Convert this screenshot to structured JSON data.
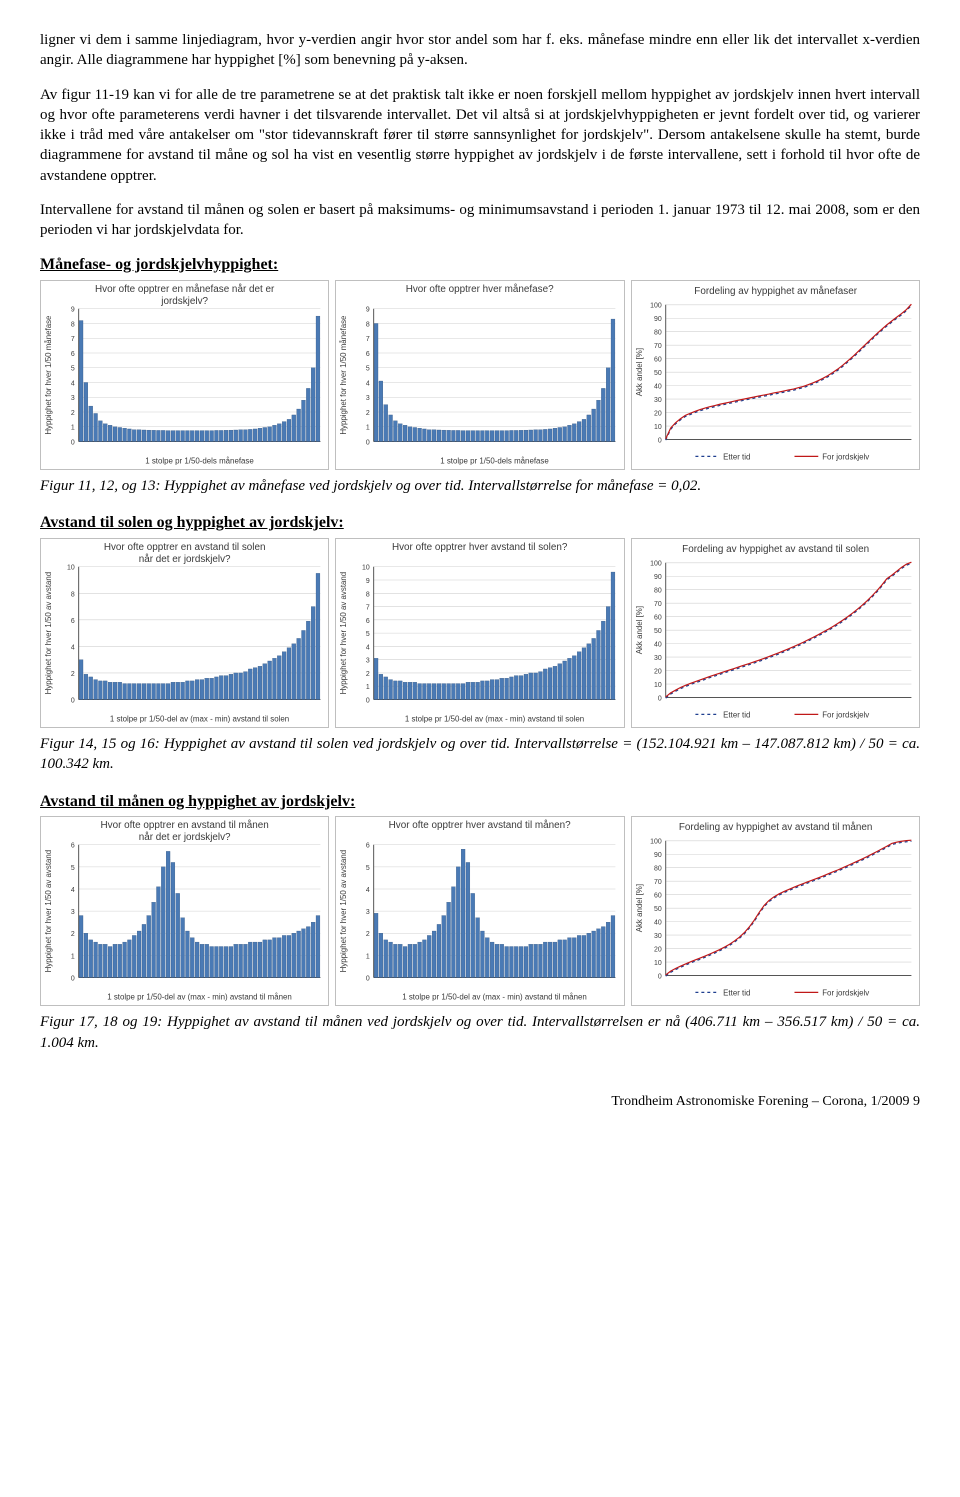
{
  "para1": "ligner vi dem i samme linjediagram, hvor y-verdien angir hvor stor andel som har f. eks. månefase mindre enn eller lik det intervallet x-verdien angir. Alle diagrammene har hyppighet [%] som benevning på y-aksen.",
  "para2": "Av figur 11-19 kan vi for alle de tre parametrene se at det praktisk talt ikke er noen forskjell mellom hyppighet av jordskjelv innen hvert intervall og hvor ofte parameterens verdi havner i det tilsvarende intervallet. Det vil altså si at jordskjelvhyppigheten er jevnt fordelt over tid, og varierer ikke i tråd med våre antakelser om \"stor tidevannskraft fører til større sannsynlighet for jordskjelv\". Dersom antakelsene skulle ha stemt, burde diagrammene for avstand til måne og sol ha vist en vesentlig større hyppighet av jordskjelv i de første intervallene, sett i forhold til hvor ofte de avstandene opptrer.",
  "para3": "Intervallene for avstand til månen og solen er basert på maksimums- og minimumsavstand i perioden 1. januar 1973 til 12. mai 2008, som er den perioden vi har jordskjelvdata for.",
  "sec1": "Månefase- og jordskjelvhyppighet:",
  "cap1": "Figur 11, 12, og 13: Hyppighet av månefase ved jordskjelv og over tid. Intervallstørrelse for månefase = 0,02.",
  "sec2": "Avstand til solen og hyppighet av jordskjelv:",
  "cap2": "Figur 14, 15 og 16: Hyppighet av avstand til solen ved jordskjelv og over tid. Intervallstørrelse = (152.104.921 km – 147.087.812 km) / 50 = ca. 100.342 km.",
  "sec3": "Avstand til månen og hyppighet av jordskjelv:",
  "cap3": "Figur 17, 18 og 19: Hyppighet av avstand til månen ved jordskjelv og over tid. Intervallstørrelsen er nå (406.711 km – 356.517 km) / 50 = ca. 1.004 km.",
  "footer": "Trondheim Astronomiske Forening – Corona, 1/2009     9",
  "chart_style": {
    "bar_color": "#4a7ab5",
    "grid_color": "#d0d0d0",
    "axis_color": "#555555",
    "text_color": "#3a3a3a",
    "title_fontsize": 10,
    "label_fontsize": 8,
    "tick_fontsize": 7,
    "line1_color": "#1f3f8f",
    "line1_dash": "3,3",
    "line2_color": "#c01818",
    "legend_labels": [
      "Etter tid",
      "For jordskjelv"
    ]
  },
  "row1": {
    "c1": {
      "title": "Hvor ofte opptrer en månefase når det er jordskjelv?",
      "ylabel": "Hyppighet for hver 1/50 månefase",
      "xlabel": "1 stolpe pr 1/50-dels månefase",
      "ymax": 9,
      "ytick": 1,
      "bars": [
        8.2,
        4.0,
        2.4,
        1.9,
        1.4,
        1.2,
        1.1,
        1.0,
        0.95,
        0.9,
        0.85,
        0.8,
        0.8,
        0.78,
        0.77,
        0.76,
        0.75,
        0.75,
        0.74,
        0.74,
        0.74,
        0.74,
        0.74,
        0.74,
        0.74,
        0.74,
        0.74,
        0.74,
        0.75,
        0.75,
        0.76,
        0.77,
        0.78,
        0.8,
        0.8,
        0.82,
        0.85,
        0.9,
        0.95,
        1.0,
        1.1,
        1.2,
        1.35,
        1.5,
        1.8,
        2.2,
        2.8,
        3.6,
        5.0,
        8.5
      ]
    },
    "c2": {
      "title": "Hvor ofte opptrer hver månefase?",
      "ylabel": "Hyppighet for hver 1/50 månefase",
      "xlabel": "1 stolpe pr 1/50-dels månefase",
      "ymax": 9,
      "ytick": 1,
      "bars": [
        8.0,
        4.1,
        2.5,
        1.8,
        1.4,
        1.2,
        1.1,
        1.0,
        0.95,
        0.9,
        0.85,
        0.8,
        0.8,
        0.78,
        0.77,
        0.76,
        0.75,
        0.75,
        0.74,
        0.74,
        0.74,
        0.74,
        0.74,
        0.74,
        0.74,
        0.74,
        0.74,
        0.74,
        0.75,
        0.75,
        0.76,
        0.77,
        0.78,
        0.8,
        0.8,
        0.82,
        0.85,
        0.9,
        0.95,
        1.0,
        1.1,
        1.2,
        1.35,
        1.5,
        1.8,
        2.2,
        2.8,
        3.6,
        5.0,
        8.3
      ]
    },
    "c3": {
      "title": "Fordeling av hyppighet av månefaser",
      "ylabel": "Akk andel [%]",
      "ymax": 100,
      "ytick": 10,
      "curve": [
        0,
        8,
        12,
        15,
        17.5,
        19,
        20.5,
        21.8,
        22.9,
        23.9,
        24.8,
        25.7,
        26.5,
        27.3,
        28.1,
        28.9,
        29.6,
        30.4,
        31.1,
        31.9,
        32.6,
        33.3,
        34.1,
        34.8,
        35.5,
        36.3,
        37,
        38,
        39,
        40.2,
        41.6,
        43.2,
        45,
        47,
        49.3,
        51.8,
        54.6,
        57.7,
        60.9,
        64.3,
        67.8,
        71.3,
        74.8,
        78.2,
        81.5,
        84.6,
        87.5,
        90.3,
        93,
        96,
        100
      ]
    }
  },
  "row2": {
    "c1": {
      "title": "Hvor ofte opptrer en avstand til solen når det er jordskjelv?",
      "ylabel": "Hyppighet for hver 1/50 av avstand",
      "xlabel": "1 stolpe pr 1/50-del av (max - min) avstand til solen",
      "ymax": 10,
      "ytick": 2,
      "bars": [
        3.0,
        1.9,
        1.7,
        1.5,
        1.4,
        1.4,
        1.3,
        1.3,
        1.3,
        1.2,
        1.2,
        1.2,
        1.2,
        1.2,
        1.2,
        1.2,
        1.2,
        1.2,
        1.2,
        1.3,
        1.3,
        1.3,
        1.4,
        1.4,
        1.5,
        1.5,
        1.6,
        1.6,
        1.7,
        1.8,
        1.8,
        1.9,
        2.0,
        2.0,
        2.1,
        2.3,
        2.4,
        2.5,
        2.7,
        2.9,
        3.1,
        3.3,
        3.6,
        3.9,
        4.2,
        4.6,
        5.2,
        5.9,
        7.0,
        9.5
      ]
    },
    "c2": {
      "title": "Hvor ofte opptrer hver avstand til solen?",
      "ylabel": "Hyppighet for hver 1/50 av avstand",
      "xlabel": "1 stolpe pr 1/50-del av (max - min) avstand til solen",
      "ymax": 10,
      "ytick": 1,
      "bars": [
        3.1,
        1.9,
        1.7,
        1.5,
        1.4,
        1.4,
        1.3,
        1.3,
        1.3,
        1.2,
        1.2,
        1.2,
        1.2,
        1.2,
        1.2,
        1.2,
        1.2,
        1.2,
        1.2,
        1.3,
        1.3,
        1.3,
        1.4,
        1.4,
        1.5,
        1.5,
        1.6,
        1.6,
        1.7,
        1.8,
        1.8,
        1.9,
        2.0,
        2.0,
        2.1,
        2.3,
        2.4,
        2.5,
        2.7,
        2.9,
        3.1,
        3.3,
        3.6,
        3.9,
        4.2,
        4.6,
        5.2,
        5.9,
        7.0,
        9.6
      ]
    },
    "c3": {
      "title": "Fordeling av hyppighet av avstand til solen",
      "ylabel": "Akk andel [%]",
      "ymax": 100,
      "ytick": 10,
      "curve": [
        0,
        3,
        5,
        7,
        8.5,
        10,
        11.3,
        12.6,
        13.9,
        15.2,
        16.4,
        17.6,
        18.8,
        20,
        21.2,
        22.4,
        23.6,
        24.8,
        26,
        27.3,
        28.6,
        29.9,
        31.3,
        32.7,
        34.2,
        35.7,
        37.3,
        38.9,
        40.6,
        42.4,
        44.2,
        46.1,
        48.1,
        50.1,
        52.2,
        54.5,
        56.9,
        59.4,
        62.1,
        65,
        68.1,
        71.4,
        75,
        78.9,
        83.1,
        87.7,
        90.3,
        93.2,
        96.2,
        98.5,
        100
      ]
    }
  },
  "row3": {
    "c1": {
      "title": "Hvor ofte opptrer en avstand til månen når det er jordskjelv?",
      "ylabel": "Hyppighet for hver 1/50 av avstand",
      "xlabel": "1 stolpe pr 1/50-del av (max - min) avstand til månen",
      "ymax": 6,
      "ytick": 1,
      "bars": [
        2.8,
        2.0,
        1.7,
        1.6,
        1.5,
        1.5,
        1.4,
        1.5,
        1.5,
        1.6,
        1.7,
        1.9,
        2.1,
        2.4,
        2.8,
        3.4,
        4.1,
        5.0,
        5.7,
        5.2,
        3.8,
        2.7,
        2.1,
        1.8,
        1.6,
        1.5,
        1.5,
        1.4,
        1.4,
        1.4,
        1.4,
        1.4,
        1.5,
        1.5,
        1.5,
        1.6,
        1.6,
        1.6,
        1.7,
        1.7,
        1.8,
        1.8,
        1.9,
        1.9,
        2.0,
        2.1,
        2.2,
        2.3,
        2.5,
        2.8
      ]
    },
    "c2": {
      "title": "Hvor ofte opptrer hver avstand til månen?",
      "ylabel": "Hyppighet for hver 1/50 av avstand",
      "xlabel": "1 stolpe pr 1/50-del av (max - min) avstand til månen",
      "ymax": 6,
      "ytick": 1,
      "bars": [
        2.9,
        2.0,
        1.7,
        1.6,
        1.5,
        1.5,
        1.4,
        1.5,
        1.5,
        1.6,
        1.7,
        1.9,
        2.1,
        2.4,
        2.8,
        3.4,
        4.1,
        5.0,
        5.8,
        5.2,
        3.8,
        2.7,
        2.1,
        1.8,
        1.6,
        1.5,
        1.5,
        1.4,
        1.4,
        1.4,
        1.4,
        1.4,
        1.5,
        1.5,
        1.5,
        1.6,
        1.6,
        1.6,
        1.7,
        1.7,
        1.8,
        1.8,
        1.9,
        1.9,
        2.0,
        2.1,
        2.2,
        2.3,
        2.5,
        2.8
      ]
    },
    "c3": {
      "title": "Fordeling av hyppighet av avstand til månen",
      "ylabel": "Akk andel [%]",
      "ymax": 100,
      "ytick": 10,
      "curve": [
        0,
        2.8,
        4.8,
        6.5,
        8.1,
        9.6,
        11.1,
        12.5,
        14,
        15.5,
        17.1,
        18.8,
        20.7,
        22.8,
        25.2,
        28,
        31.4,
        35.5,
        40.5,
        46.2,
        51.4,
        55.2,
        57.9,
        60,
        61.8,
        63.4,
        64.9,
        66.4,
        67.8,
        69.2,
        70.6,
        72,
        73.4,
        74.9,
        76.4,
        77.9,
        79.5,
        81.1,
        82.7,
        84.4,
        86.1,
        87.9,
        89.7,
        91.6,
        93.5,
        95.5,
        97.6,
        98.5,
        99.2,
        99.7,
        100
      ]
    }
  }
}
